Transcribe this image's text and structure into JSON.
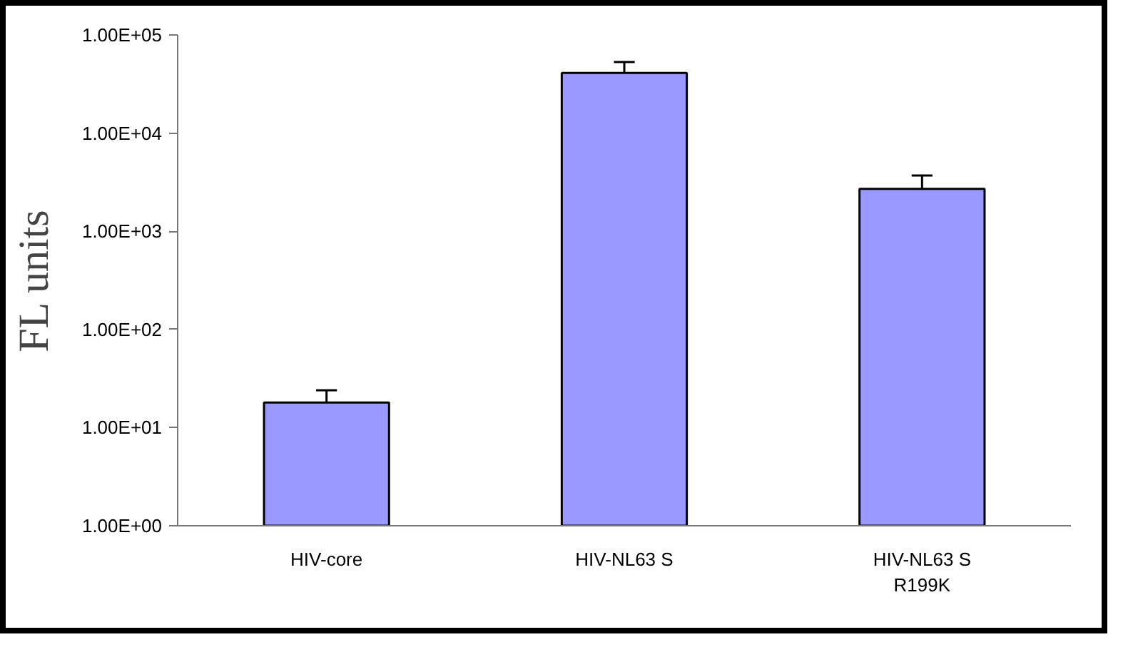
{
  "chart_data": {
    "type": "bar",
    "ylabel": "FL units",
    "categories": [
      "HIV-core",
      "HIV-NL63 S",
      "HIV-NL63 S\nR199K"
    ],
    "values": [
      18,
      41000,
      2700
    ],
    "errors": [
      [
        18,
        24
      ],
      [
        41000,
        53000
      ],
      [
        2700,
        3700
      ]
    ],
    "color": "#9999ff",
    "log": true,
    "ylim": [
      1,
      100000
    ],
    "yticks": [
      {
        "value": 1,
        "label": "1.00E+00"
      },
      {
        "value": 10,
        "label": "1.00E+01"
      },
      {
        "value": 100,
        "label": "1.00E+02"
      },
      {
        "value": 1000,
        "label": "1.00E+03"
      },
      {
        "value": 10000,
        "label": "1.00E+04"
      },
      {
        "value": 100000,
        "label": "1.00E+05"
      }
    ],
    "grid": false
  }
}
